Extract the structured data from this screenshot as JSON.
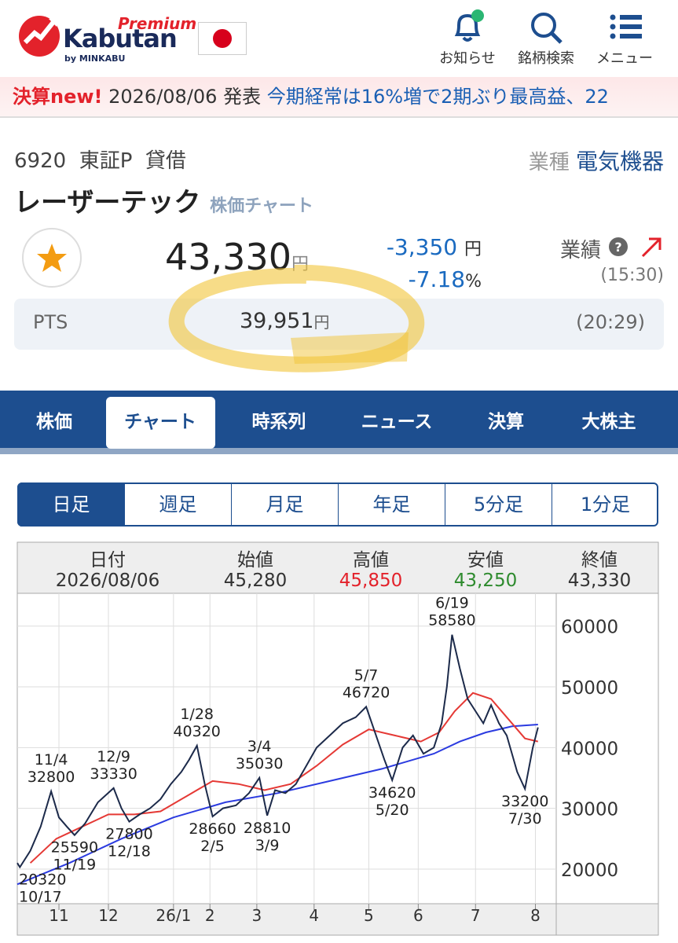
{
  "header": {
    "premium": "Premium",
    "brand": "Kabutan",
    "by": "by MINKABU",
    "icons": [
      "お知らせ",
      "銘柄検索",
      "メニュー"
    ]
  },
  "ticker": {
    "badge": "決算new!",
    "date": "2026/08/06 発表",
    "headline": "今期経常は16%増で2期ぶり最高益、22"
  },
  "stock": {
    "code": "6920",
    "market": "東証P",
    "kind": "貸借",
    "sector_label": "業種",
    "sector": "電気機器",
    "name": "レーザーテック",
    "page": "株価チャート",
    "price": "43,330",
    "yen": "円",
    "change": "-3,350",
    "change_pct": "-7.18",
    "pct": "%",
    "results": "業績",
    "time": "(15:30)",
    "pts": {
      "label": "PTS",
      "price": "39,951",
      "time": "(20:29)"
    }
  },
  "tabs": [
    "株価",
    "チャート",
    "時系列",
    "ニュース",
    "決算",
    "大株主"
  ],
  "periods": [
    "日足",
    "週足",
    "月足",
    "年足",
    "5分足",
    "1分足"
  ],
  "ohlc": {
    "headers": [
      "日付",
      "始値",
      "高値",
      "安値",
      "終値"
    ],
    "values": [
      "2026/08/06",
      "45,280",
      "45,850",
      "43,250",
      "43,330"
    ]
  },
  "chart_data": {
    "type": "line",
    "xlim": [
      0,
      207
    ],
    "ylim": [
      14300,
      65400
    ],
    "yticks": [
      20000,
      30000,
      40000,
      50000,
      60000
    ],
    "xticks": [
      {
        "value": 16,
        "label": "11"
      },
      {
        "value": 35,
        "label": "12"
      },
      {
        "value": 60,
        "label": "26/1"
      },
      {
        "value": 74,
        "label": "2"
      },
      {
        "value": 92,
        "label": "3"
      },
      {
        "value": 114,
        "label": "4"
      },
      {
        "value": 135,
        "label": "5"
      },
      {
        "value": 154,
        "label": "6"
      },
      {
        "value": 176,
        "label": "7"
      },
      {
        "value": 199,
        "label": "8"
      }
    ],
    "grid": true,
    "series": [
      {
        "color": "#1c2a4a",
        "x": [
          0,
          1,
          5,
          9,
          13,
          16,
          19,
          22,
          26,
          31,
          37,
          40,
          43,
          47,
          51,
          55,
          59,
          63,
          66,
          69,
          72,
          75,
          79,
          84,
          89,
          93,
          96,
          99,
          103,
          107,
          111,
          115,
          120,
          125,
          130,
          134,
          137,
          141,
          144,
          148,
          152,
          156,
          160,
          163,
          165,
          167,
          170,
          173,
          176,
          179,
          182,
          185,
          188,
          192,
          195,
          198,
          200
        ],
        "values": [
          21000,
          20320,
          23000,
          27000,
          32800,
          28500,
          27000,
          25590,
          27500,
          31000,
          33330,
          30000,
          27800,
          29000,
          30000,
          31500,
          34000,
          36000,
          38000,
          40320,
          34000,
          28660,
          30000,
          30500,
          32500,
          35030,
          28810,
          33000,
          32500,
          34000,
          37000,
          40000,
          42000,
          44000,
          45000,
          46720,
          43000,
          38000,
          34620,
          40000,
          42000,
          39000,
          40000,
          44000,
          50000,
          58580,
          53000,
          48000,
          46000,
          44000,
          47000,
          44000,
          42000,
          36000,
          33200,
          40000,
          43330
        ]
      },
      {
        "color": "#e53935",
        "x": [
          5,
          15,
          25,
          35,
          45,
          55,
          65,
          75,
          85,
          95,
          105,
          115,
          125,
          135,
          145,
          155,
          162,
          168,
          175,
          182,
          188,
          195,
          200
        ],
        "values": [
          21000,
          25000,
          27000,
          29000,
          29000,
          29500,
          32000,
          34500,
          34000,
          33000,
          34000,
          37000,
          40500,
          43000,
          42000,
          41000,
          42500,
          46000,
          49000,
          48000,
          45000,
          41500,
          41000
        ]
      },
      {
        "color": "#2b3be0",
        "x": [
          0,
          20,
          40,
          60,
          80,
          100,
          120,
          140,
          160,
          170,
          180,
          190,
          200
        ],
        "values": [
          17500,
          21000,
          25000,
          28500,
          31000,
          32500,
          34500,
          36500,
          39000,
          41000,
          42500,
          43500,
          43800
        ]
      }
    ],
    "peaks": [
      {
        "date": "11/4",
        "x": 13,
        "value": 32800
      },
      {
        "date": "12/9",
        "x": 37,
        "value": 33330
      },
      {
        "date": "1/28",
        "x": 69,
        "value": 40320
      },
      {
        "date": "3/4",
        "x": 93,
        "value": 35030
      },
      {
        "date": "5/7",
        "x": 134,
        "value": 46720
      },
      {
        "date": "6/19",
        "x": 167,
        "value": 58580
      }
    ],
    "troughs": [
      {
        "date": "10/17",
        "x": 1,
        "value": 20320
      },
      {
        "date": "11/19",
        "x": 22,
        "value": 25590
      },
      {
        "date": "12/18",
        "x": 43,
        "value": 27800
      },
      {
        "date": "2/5",
        "x": 75,
        "value": 28660
      },
      {
        "date": "3/9",
        "x": 96,
        "value": 28810
      },
      {
        "date": "5/20",
        "x": 144,
        "value": 34620
      },
      {
        "date": "7/30",
        "x": 195,
        "value": 33200
      }
    ]
  }
}
